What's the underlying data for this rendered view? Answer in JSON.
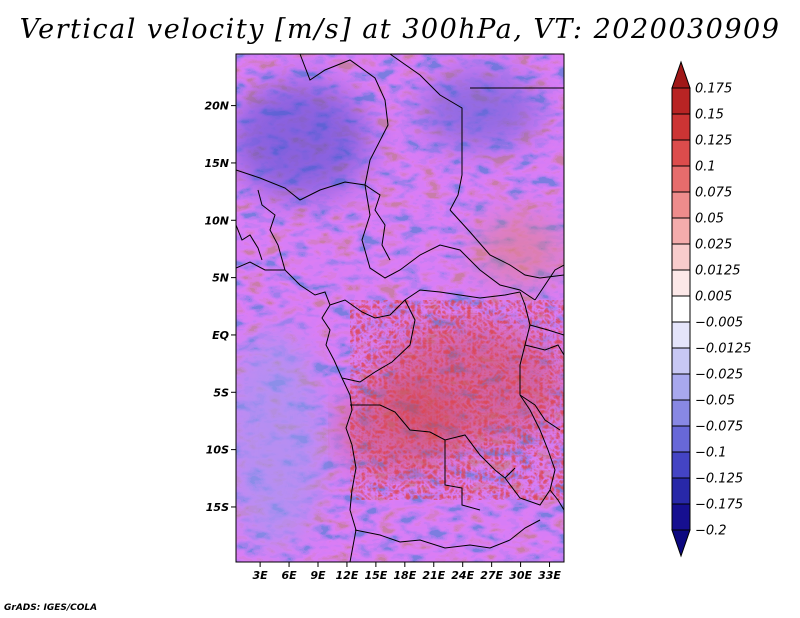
{
  "title": "Vertical velocity [m/s] at 300hPa, VT: 2020030909",
  "credit": "GrADS: IGES/COLA",
  "map": {
    "lat_labels": [
      "20N",
      "15N",
      "10N",
      "5N",
      "EQ",
      "5S",
      "10S",
      "15S"
    ],
    "lat_values": [
      20,
      15,
      10,
      5,
      0,
      -5,
      -10,
      -15
    ],
    "lon_labels": [
      "3E",
      "6E",
      "9E",
      "12E",
      "15E",
      "18E",
      "21E",
      "24E",
      "27E",
      "30E",
      "33E"
    ],
    "lon_values": [
      3,
      6,
      9,
      12,
      15,
      18,
      21,
      24,
      27,
      30,
      33
    ],
    "lon_range": [
      0.5,
      34.5
    ],
    "lat_range": [
      -19.8,
      24.5
    ]
  },
  "colorbar": {
    "labels": [
      "0.175",
      "0.15",
      "0.125",
      "0.1",
      "0.075",
      "0.05",
      "0.025",
      "0.0125",
      "0.005",
      "−0.005",
      "−0.0125",
      "−0.025",
      "−0.05",
      "−0.075",
      "−0.1",
      "−0.125",
      "−0.175",
      "−0.2"
    ],
    "colors": [
      "#a01818",
      "#b82424",
      "#cc3434",
      "#dc4c4c",
      "#e66c6c",
      "#ee8c8c",
      "#f4acac",
      "#f8cccc",
      "#fce8e8",
      "#ffffff",
      "#e4e4fa",
      "#c8c8f4",
      "#a8a8ee",
      "#8888e4",
      "#6868d8",
      "#4444c4",
      "#2828a8",
      "#160f90",
      "#0c0880"
    ]
  }
}
